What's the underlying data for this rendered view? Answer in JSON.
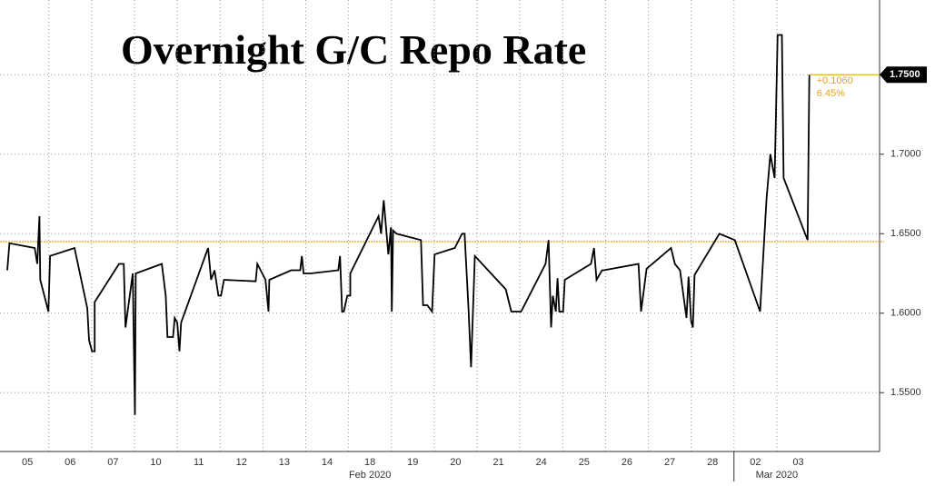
{
  "chart_data": {
    "type": "line",
    "title": "Overnight G/C Repo Rate",
    "color": "#000000",
    "x": [
      -0.47,
      -0.42,
      0.17,
      0.23,
      0.28,
      0.3,
      0.49,
      0.53,
      1.1,
      1.4,
      1.44,
      1.51,
      1.57,
      1.57,
      2.14,
      2.25,
      2.29,
      2.46,
      2.51,
      2.53,
      3.14,
      3.23,
      3.27,
      3.4,
      3.44,
      3.5,
      3.55,
      3.59,
      4.22,
      4.29,
      4.37,
      4.46,
      4.52,
      4.59,
      5.33,
      5.37,
      5.56,
      5.63,
      5.65,
      6.16,
      6.37,
      6.41,
      6.45,
      6.62,
      7.26,
      7.3,
      7.35,
      7.39,
      7.47,
      7.54,
      7.54,
      8.2,
      8.26,
      8.32,
      8.43,
      8.49,
      8.51,
      8.54,
      8.62,
      9.19,
      9.24,
      9.34,
      9.45,
      9.51,
      9.98,
      10.15,
      10.21,
      10.3,
      10.36,
      10.45,
      11.17,
      11.3,
      11.53,
      12.1,
      12.17,
      12.23,
      12.27,
      12.34,
      12.38,
      12.42,
      12.51,
      12.55,
      13.16,
      13.23,
      13.29,
      13.42,
      13.46,
      14.27,
      14.33,
      14.46,
      15.03,
      15.12,
      15.24,
      15.39,
      15.44,
      15.5,
      15.54,
      15.58,
      16.16,
      16.52,
      17.11,
      17.26,
      17.35,
      17.45,
      17.52,
      17.62,
      17.66,
      18.22,
      18.26
    ],
    "values": [
      1.627,
      1.644,
      1.641,
      1.631,
      1.661,
      1.621,
      1.601,
      1.636,
      1.641,
      1.603,
      1.583,
      1.576,
      1.576,
      1.607,
      1.631,
      1.631,
      1.591,
      1.625,
      1.536,
      1.625,
      1.631,
      1.611,
      1.585,
      1.585,
      1.597,
      1.594,
      1.576,
      1.594,
      1.641,
      1.621,
      1.627,
      1.611,
      1.611,
      1.621,
      1.62,
      1.631,
      1.621,
      1.601,
      1.621,
      1.627,
      1.627,
      1.636,
      1.625,
      1.625,
      1.627,
      1.636,
      1.601,
      1.601,
      1.611,
      1.611,
      1.625,
      1.661,
      1.65,
      1.671,
      1.637,
      1.654,
      1.601,
      1.652,
      1.65,
      1.646,
      1.605,
      1.605,
      1.601,
      1.637,
      1.641,
      1.65,
      1.65,
      1.603,
      1.566,
      1.636,
      1.615,
      1.601,
      1.601,
      1.631,
      1.646,
      1.591,
      1.611,
      1.601,
      1.622,
      1.601,
      1.601,
      1.621,
      1.631,
      1.641,
      1.621,
      1.627,
      1.627,
      1.631,
      1.601,
      1.628,
      1.641,
      1.631,
      1.627,
      1.597,
      1.623,
      1.595,
      1.591,
      1.624,
      1.65,
      1.646,
      1.601,
      1.672,
      1.7,
      1.685,
      1.775,
      1.775,
      1.685,
      1.646,
      1.75
    ],
    "xlim": [
      -0.64,
      19.9
    ],
    "xticks": [
      {
        "value": 0,
        "label": "05"
      },
      {
        "value": 1,
        "label": "06"
      },
      {
        "value": 2,
        "label": "07"
      },
      {
        "value": 3,
        "label": "10"
      },
      {
        "value": 4,
        "label": "11"
      },
      {
        "value": 5,
        "label": "12"
      },
      {
        "value": 6,
        "label": "13"
      },
      {
        "value": 7,
        "label": "14"
      },
      {
        "value": 8,
        "label": "18"
      },
      {
        "value": 9,
        "label": "19"
      },
      {
        "value": 10,
        "label": "20"
      },
      {
        "value": 11,
        "label": "21"
      },
      {
        "value": 12,
        "label": "24"
      },
      {
        "value": 13,
        "label": "25"
      },
      {
        "value": 14,
        "label": "26"
      },
      {
        "value": 15,
        "label": "27"
      },
      {
        "value": 16,
        "label": "28"
      },
      {
        "value": 17,
        "label": "02"
      },
      {
        "value": 18,
        "label": "03"
      }
    ],
    "x_groups": [
      {
        "label": "Feb 2020",
        "ticks": 17
      },
      {
        "label": "Mar 2020",
        "ticks": 2
      }
    ],
    "ylim": [
      1.513,
      1.797
    ],
    "yticks": [
      {
        "value": 1.55,
        "label": "1.5500"
      },
      {
        "value": 1.6,
        "label": "1.6000"
      },
      {
        "value": 1.65,
        "label": "1.6500"
      },
      {
        "value": 1.7,
        "label": "1.7000"
      },
      {
        "value": 1.75,
        "label": "1.7500"
      }
    ],
    "grid": true,
    "reference_line": {
      "value": 1.645,
      "color": "#e8a317"
    },
    "last_label": {
      "value": 1.75,
      "label": "1.7500"
    },
    "annotations": [
      "+0.1060",
      "6.45%"
    ]
  }
}
